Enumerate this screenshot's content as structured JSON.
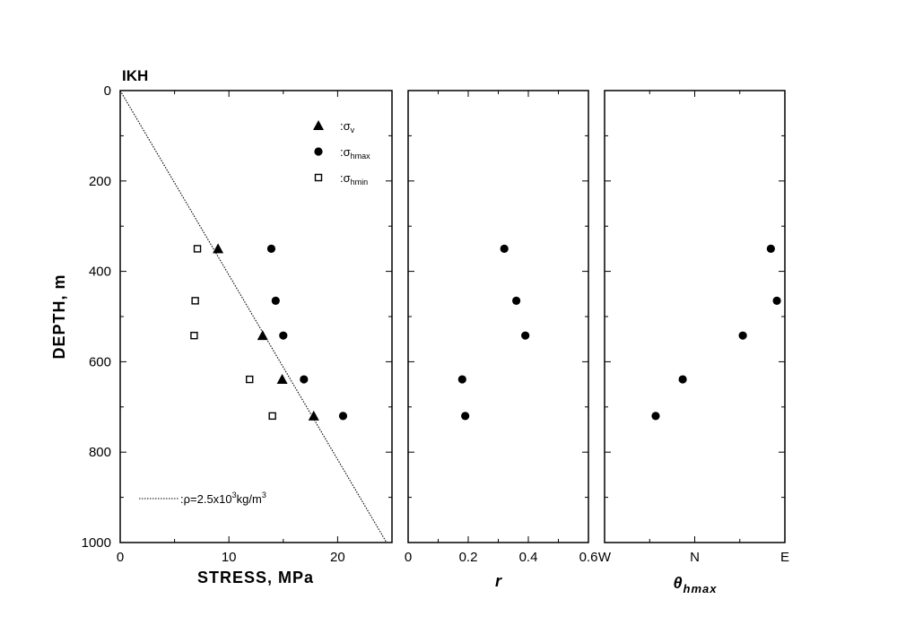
{
  "chart_data": [
    {
      "type": "scatter",
      "panel_tag": "IKH",
      "xlabel": "STRESS, MPa",
      "ylabel": "DEPTH, m",
      "xlim": [
        0,
        25
      ],
      "ylim": [
        1000,
        0
      ],
      "xticks": [
        0,
        10,
        20
      ],
      "yticks": [
        0,
        200,
        400,
        600,
        800,
        1000
      ],
      "series": [
        {
          "name": "σv",
          "marker": "triangle",
          "points": [
            {
              "x": 9.0,
              "y": 350
            },
            {
              "x": 13.1,
              "y": 542
            },
            {
              "x": 14.9,
              "y": 639
            },
            {
              "x": 17.8,
              "y": 720
            }
          ]
        },
        {
          "name": "σhmax",
          "marker": "circle",
          "points": [
            {
              "x": 13.9,
              "y": 350
            },
            {
              "x": 14.3,
              "y": 465
            },
            {
              "x": 15.0,
              "y": 542
            },
            {
              "x": 16.9,
              "y": 639
            },
            {
              "x": 20.5,
              "y": 720
            }
          ]
        },
        {
          "name": "σhmin",
          "marker": "square",
          "points": [
            {
              "x": 7.1,
              "y": 350
            },
            {
              "x": 6.9,
              "y": 465
            },
            {
              "x": 6.8,
              "y": 542
            },
            {
              "x": 11.9,
              "y": 639
            },
            {
              "x": 14.0,
              "y": 720
            }
          ]
        }
      ],
      "reference_line": {
        "label": "ρ=2.5x103kg/m3",
        "points": [
          {
            "x": 0,
            "y": 0
          },
          {
            "x": 24.5,
            "y": 1000
          }
        ]
      },
      "legend": {
        "placement": "top-right",
        "items": [
          {
            "prefix": ":",
            "symbol": "σ",
            "sub": "v"
          },
          {
            "prefix": ":",
            "symbol": "σ",
            "sub": "hmax"
          },
          {
            "prefix": ":",
            "symbol": "σ",
            "sub": "hmin"
          }
        ],
        "line_item": {
          "prefix": ":ρ=2.5x10",
          "sup1": "3",
          "mid": "kg/m",
          "sup2": "3"
        }
      }
    },
    {
      "type": "scatter",
      "xlabel": "r",
      "xlim": [
        0,
        0.6
      ],
      "ylim": [
        1000,
        0
      ],
      "xticks": [
        0,
        0.2,
        0.4,
        0.6
      ],
      "xtick_labels": [
        "0",
        "0.2",
        "0.4",
        "0.6"
      ],
      "series": [
        {
          "marker": "circle",
          "points": [
            {
              "x": 0.32,
              "y": 350
            },
            {
              "x": 0.36,
              "y": 465
            },
            {
              "x": 0.39,
              "y": 542
            },
            {
              "x": 0.18,
              "y": 639
            },
            {
              "x": 0.19,
              "y": 720
            }
          ]
        }
      ]
    },
    {
      "type": "scatter",
      "xlabel": "θhmax",
      "xlabel_parts": {
        "main": "θ",
        "sub": "hmax"
      },
      "xlim": [
        -90,
        90
      ],
      "ylim": [
        1000,
        0
      ],
      "xticks": [
        -90,
        0,
        90
      ],
      "xtick_labels": [
        "W",
        "N",
        "E"
      ],
      "minor_xticks": [
        -45,
        45
      ],
      "series": [
        {
          "marker": "circle",
          "points": [
            {
              "x": 76,
              "y": 350
            },
            {
              "x": 82,
              "y": 465
            },
            {
              "x": 48,
              "y": 542
            },
            {
              "x": -12,
              "y": 639
            },
            {
              "x": -39,
              "y": 720
            }
          ]
        }
      ]
    }
  ]
}
